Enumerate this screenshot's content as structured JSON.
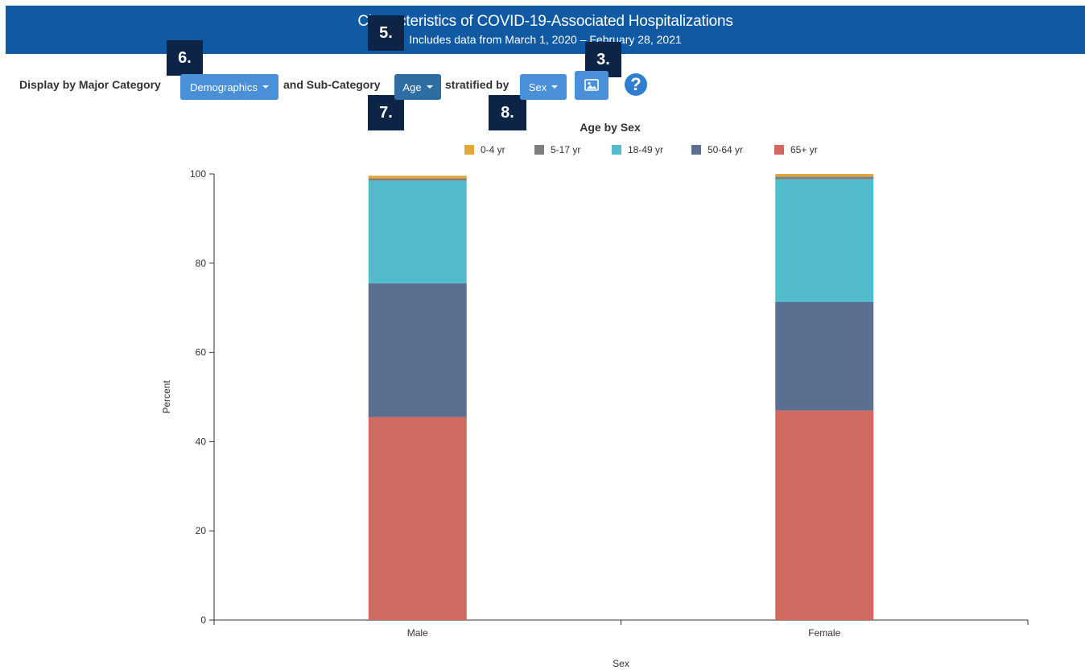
{
  "banner": {
    "title": "Characteristics of COVID-19-Associated Hospitalizations",
    "subtitle": "Includes data from March 1, 2020 – February 28, 2021"
  },
  "callouts": {
    "c5": "5.",
    "c6": "6.",
    "c3": "3.",
    "c7": "7.",
    "c8": "8."
  },
  "toolbar": {
    "major_label": "Display by Major Category",
    "major_value": "Demographics",
    "sub_label": "and Sub-Category",
    "sub_value": "Age",
    "strat_label": "stratified by",
    "strat_value": "Sex",
    "image_icon": "image-icon",
    "help_icon": "help-icon",
    "help_glyph": "?"
  },
  "colors": {
    "banner": "#0f5aa3",
    "callout": "#0d2447",
    "button": "#4a90d9"
  },
  "chart_data": {
    "type": "bar",
    "stacked": true,
    "title": "Age by Sex",
    "xlabel": "Sex",
    "ylabel": "Percent",
    "ylim": [
      0,
      100
    ],
    "yticks": [
      0,
      20,
      40,
      60,
      80,
      100
    ],
    "categories": [
      "Male",
      "Female"
    ],
    "legend_position": "top-center",
    "series": [
      {
        "name": "0-4 yr",
        "color": "#e0a83a",
        "values": [
          0.6,
          0.6
        ]
      },
      {
        "name": "5-17 yr",
        "color": "#7f7f7f",
        "values": [
          0.5,
          0.6
        ]
      },
      {
        "name": "18-49 yr",
        "color": "#52bbcc",
        "values": [
          23.0,
          27.5
        ]
      },
      {
        "name": "50-64 yr",
        "color": "#5b7090",
        "values": [
          30.0,
          24.3
        ]
      },
      {
        "name": "65+ yr",
        "color": "#d06a60",
        "values": [
          45.5,
          47.0
        ]
      }
    ]
  }
}
